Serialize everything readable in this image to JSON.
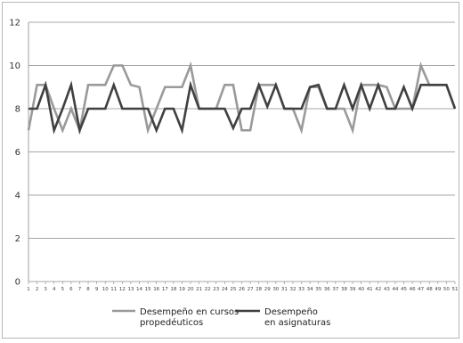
{
  "chart_data": {
    "type": "line",
    "title": "",
    "xlabel": "",
    "ylabel": "",
    "x": [
      1,
      2,
      3,
      4,
      5,
      6,
      7,
      8,
      9,
      10,
      11,
      12,
      13,
      14,
      15,
      16,
      17,
      18,
      19,
      20,
      21,
      22,
      23,
      24,
      25,
      26,
      27,
      28,
      29,
      30,
      31,
      32,
      33,
      34,
      35,
      36,
      37,
      38,
      39,
      40,
      41,
      42,
      43,
      44,
      45,
      46,
      47,
      48,
      49,
      50,
      51
    ],
    "ylim": [
      0,
      12
    ],
    "yticks": [
      0,
      2,
      4,
      6,
      8,
      10,
      12
    ],
    "grid": "horizontal",
    "legend_position": "bottom",
    "series": [
      {
        "name": "Desempeño en cursos propedéuticos",
        "legend_lines": [
          "Desempeño en cursos",
          "propedéuticos"
        ],
        "color": "#9a9a9a",
        "values": [
          7,
          9.1,
          9.1,
          8,
          7,
          8,
          7,
          9.1,
          9.1,
          9.1,
          10,
          10,
          9.1,
          9,
          7,
          8,
          9,
          9,
          9,
          10,
          8,
          8,
          8,
          9.1,
          9.1,
          7,
          7,
          9.1,
          9.1,
          9.1,
          8,
          8,
          7,
          9,
          9,
          8,
          8,
          8,
          7,
          9.1,
          9.1,
          9.1,
          9,
          8,
          8,
          8,
          10,
          9.1,
          9.1,
          9.1,
          8
        ]
      },
      {
        "name": "Desempeño en asignaturas",
        "legend_lines": [
          "Desempeño",
          "en asignaturas"
        ],
        "color": "#404040",
        "values": [
          8,
          8,
          9.1,
          7,
          8,
          9.1,
          7,
          8,
          8,
          8,
          9.1,
          8,
          8,
          8,
          8,
          7,
          8,
          8,
          7,
          9.1,
          8,
          8,
          8,
          8,
          7.1,
          8,
          8,
          9.1,
          8.1,
          9.1,
          8,
          8,
          8,
          9,
          9.1,
          8,
          8,
          9.1,
          8,
          9.1,
          8,
          9.1,
          8,
          8,
          9,
          8,
          9.1,
          9.1,
          9.1,
          9.1,
          8
        ]
      }
    ]
  }
}
